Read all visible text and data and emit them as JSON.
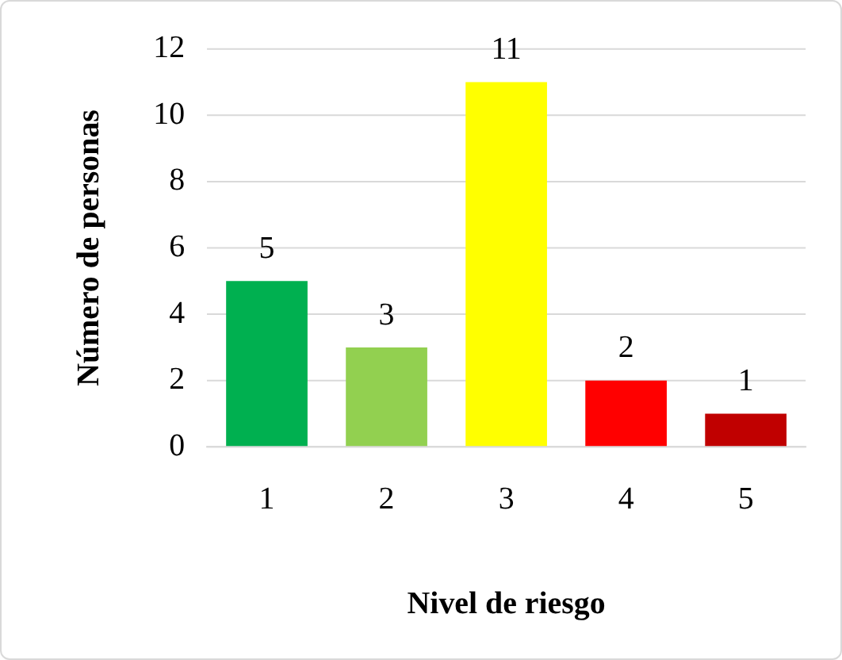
{
  "chart_data": {
    "type": "bar",
    "xlabel": "Nivel de riesgo",
    "ylabel": "Número de personas",
    "categories": [
      "1",
      "2",
      "3",
      "4",
      "5"
    ],
    "values": [
      5,
      3,
      11,
      2,
      1
    ],
    "colors": [
      "#00b050",
      "#92d050",
      "#ffff00",
      "#ff0000",
      "#c00000"
    ],
    "ylim": [
      0,
      12
    ],
    "yticks": [
      0,
      2,
      4,
      6,
      8,
      10,
      12
    ],
    "grid": "y",
    "legend": false,
    "data_labels": true
  }
}
